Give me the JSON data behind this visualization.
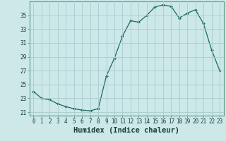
{
  "x": [
    0,
    1,
    2,
    3,
    4,
    5,
    6,
    7,
    8,
    9,
    10,
    11,
    12,
    13,
    14,
    15,
    16,
    17,
    18,
    19,
    20,
    21,
    22,
    23
  ],
  "y": [
    24.0,
    23.0,
    22.8,
    22.2,
    21.8,
    21.5,
    21.3,
    21.2,
    21.5,
    26.2,
    28.8,
    32.0,
    34.2,
    34.0,
    35.0,
    36.2,
    36.5,
    36.3,
    34.6,
    35.3,
    35.8,
    33.8,
    30.0,
    27.0
  ],
  "line_color": "#1a6b5a",
  "marker": "D",
  "marker_size": 2.0,
  "bg_color": "#cce8e8",
  "grid_color": "#aacccc",
  "xlabel": "Humidex (Indice chaleur)",
  "ylim": [
    20.5,
    37.0
  ],
  "xlim": [
    -0.5,
    23.5
  ],
  "yticks": [
    21,
    23,
    25,
    27,
    29,
    31,
    33,
    35
  ],
  "xticks": [
    0,
    1,
    2,
    3,
    4,
    5,
    6,
    7,
    8,
    9,
    10,
    11,
    12,
    13,
    14,
    15,
    16,
    17,
    18,
    19,
    20,
    21,
    22,
    23
  ],
  "tick_fontsize": 5.5,
  "label_fontsize": 7.5,
  "spine_color": "#5a9a8a",
  "tick_color": "#1a3a3a",
  "linewidth": 0.9
}
